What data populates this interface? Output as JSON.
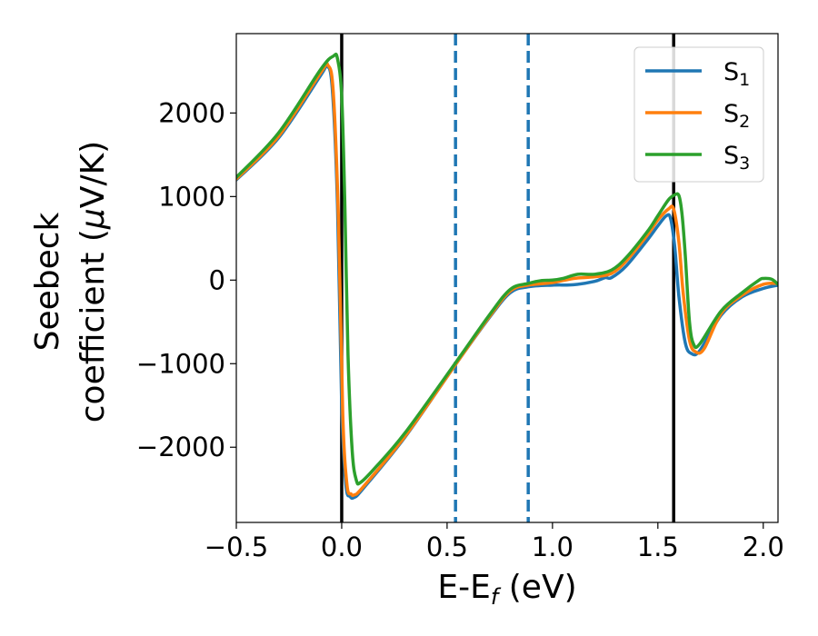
{
  "chart_data": {
    "type": "line",
    "xlabel": "E-E",
    "xlabel_sub": "f",
    "xlabel_unit": " (eV)",
    "ylabel_line1": "Seebeck",
    "ylabel_line2_prefix": "coefficient  (",
    "ylabel_line2_mu": "μ",
    "ylabel_line2_suffix": "V/K)",
    "xlim": [
      -0.5,
      2.07
    ],
    "ylim": [
      -2900,
      2950
    ],
    "x_ticks": [
      -0.5,
      0.0,
      0.5,
      1.0,
      1.5,
      2.0
    ],
    "x_tick_labels": [
      "−0.5",
      "0.0",
      "0.5",
      "1.0",
      "1.5",
      "2.0"
    ],
    "y_ticks": [
      -2000,
      -1000,
      0,
      1000,
      2000
    ],
    "y_tick_labels": [
      "−2000",
      "−1000",
      "0",
      "1000",
      "2000"
    ],
    "grid": false,
    "legend_position": "top-right",
    "vertical_lines": [
      {
        "x": 0.0,
        "style": "solid",
        "color": "#000000"
      },
      {
        "x": 1.575,
        "style": "solid",
        "color": "#000000"
      },
      {
        "x": 0.54,
        "style": "dashed",
        "color": "#1f77b4"
      },
      {
        "x": 0.885,
        "style": "dashed",
        "color": "#1f77b4"
      }
    ],
    "series": [
      {
        "name": "S",
        "sub": "1",
        "color": "#1f77b4",
        "points": [
          [
            -0.5,
            1200
          ],
          [
            -0.3,
            1700
          ],
          [
            -0.1,
            2450
          ],
          [
            -0.07,
            2560
          ],
          [
            -0.045,
            2300
          ],
          [
            -0.02,
            900
          ],
          [
            0.0,
            -1500
          ],
          [
            0.02,
            -2450
          ],
          [
            0.04,
            -2590
          ],
          [
            0.06,
            -2600
          ],
          [
            0.1,
            -2500
          ],
          [
            0.3,
            -1880
          ],
          [
            0.54,
            -1010
          ],
          [
            0.7,
            -450
          ],
          [
            0.8,
            -150
          ],
          [
            0.885,
            -80
          ],
          [
            1.0,
            -60
          ],
          [
            1.1,
            -55
          ],
          [
            1.2,
            -15
          ],
          [
            1.25,
            30
          ],
          [
            1.28,
            30
          ],
          [
            1.35,
            170
          ],
          [
            1.45,
            480
          ],
          [
            1.5,
            650
          ],
          [
            1.54,
            770
          ],
          [
            1.56,
            740
          ],
          [
            1.58,
            400
          ],
          [
            1.6,
            -200
          ],
          [
            1.63,
            -750
          ],
          [
            1.66,
            -880
          ],
          [
            1.7,
            -840
          ],
          [
            1.8,
            -420
          ],
          [
            1.9,
            -200
          ],
          [
            2.0,
            -100
          ],
          [
            2.07,
            -60
          ]
        ]
      },
      {
        "name": "S",
        "sub": "2",
        "color": "#ff7f0e",
        "points": [
          [
            -0.5,
            1210
          ],
          [
            -0.3,
            1720
          ],
          [
            -0.1,
            2480
          ],
          [
            -0.065,
            2570
          ],
          [
            -0.04,
            2250
          ],
          [
            -0.015,
            700
          ],
          [
            0.005,
            -1600
          ],
          [
            0.025,
            -2450
          ],
          [
            0.045,
            -2560
          ],
          [
            0.06,
            -2570
          ],
          [
            0.1,
            -2480
          ],
          [
            0.3,
            -1870
          ],
          [
            0.54,
            -1010
          ],
          [
            0.7,
            -440
          ],
          [
            0.8,
            -130
          ],
          [
            0.885,
            -60
          ],
          [
            1.0,
            -30
          ],
          [
            1.1,
            20
          ],
          [
            1.2,
            40
          ],
          [
            1.28,
            80
          ],
          [
            1.35,
            230
          ],
          [
            1.45,
            540
          ],
          [
            1.5,
            720
          ],
          [
            1.55,
            850
          ],
          [
            1.575,
            850
          ],
          [
            1.6,
            450
          ],
          [
            1.62,
            -150
          ],
          [
            1.65,
            -720
          ],
          [
            1.68,
            -860
          ],
          [
            1.72,
            -820
          ],
          [
            1.8,
            -400
          ],
          [
            1.9,
            -180
          ],
          [
            2.0,
            -50
          ],
          [
            2.07,
            -40
          ]
        ]
      },
      {
        "name": "S",
        "sub": "3",
        "color": "#2ca02c",
        "points": [
          [
            -0.5,
            1230
          ],
          [
            -0.3,
            1760
          ],
          [
            -0.1,
            2520
          ],
          [
            -0.04,
            2680
          ],
          [
            -0.02,
            2650
          ],
          [
            0.0,
            2200
          ],
          [
            0.015,
            900
          ],
          [
            0.03,
            -900
          ],
          [
            0.05,
            -2050
          ],
          [
            0.07,
            -2400
          ],
          [
            0.09,
            -2420
          ],
          [
            0.15,
            -2270
          ],
          [
            0.3,
            -1830
          ],
          [
            0.54,
            -990
          ],
          [
            0.7,
            -420
          ],
          [
            0.8,
            -110
          ],
          [
            0.885,
            -40
          ],
          [
            0.95,
            -5
          ],
          [
            1.0,
            0
          ],
          [
            1.05,
            20
          ],
          [
            1.12,
            70
          ],
          [
            1.2,
            70
          ],
          [
            1.28,
            120
          ],
          [
            1.35,
            270
          ],
          [
            1.45,
            580
          ],
          [
            1.5,
            770
          ],
          [
            1.55,
            960
          ],
          [
            1.58,
            1020
          ],
          [
            1.6,
            1010
          ],
          [
            1.615,
            780
          ],
          [
            1.63,
            300
          ],
          [
            1.65,
            -500
          ],
          [
            1.67,
            -770
          ],
          [
            1.7,
            -760
          ],
          [
            1.8,
            -370
          ],
          [
            1.9,
            -150
          ],
          [
            1.98,
            0
          ],
          [
            2.0,
            20
          ],
          [
            2.04,
            10
          ],
          [
            2.07,
            -50
          ]
        ]
      }
    ]
  }
}
